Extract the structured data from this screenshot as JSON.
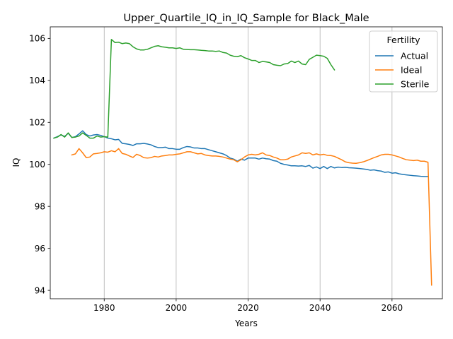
{
  "chart_data": {
    "type": "line",
    "title": "Upper_Quartile_IQ_in_IQ_Sample for Black_Male",
    "xlabel": "Years",
    "ylabel": "IQ",
    "xlim": [
      1965,
      2074
    ],
    "ylim": [
      93.6,
      106.55
    ],
    "xticks": [
      1980,
      2000,
      2020,
      2040,
      2060
    ],
    "yticks": [
      94,
      96,
      98,
      100,
      102,
      104,
      106
    ],
    "grid": "x-axis only",
    "legend": {
      "title": "Fertility",
      "placement": "top-right"
    },
    "series": [
      {
        "name": "Actual",
        "color": "#1f77b4",
        "x": [
          1966,
          1967,
          1968,
          1969,
          1970,
          1971,
          1972,
          1973,
          1974,
          1975,
          1976,
          1977,
          1978,
          1979,
          1980,
          1981,
          1982,
          1983,
          1984,
          1985,
          1986,
          1987,
          1988,
          1989,
          1990,
          1991,
          1992,
          1993,
          1994,
          1995,
          1996,
          1997,
          1998,
          1999,
          2000,
          2001,
          2002,
          2003,
          2004,
          2005,
          2006,
          2007,
          2008,
          2009,
          2010,
          2011,
          2012,
          2013,
          2014,
          2015,
          2016,
          2017,
          2018,
          2019,
          2020,
          2021,
          2022,
          2023,
          2024,
          2025,
          2026,
          2027,
          2028,
          2029,
          2030,
          2031,
          2032,
          2033,
          2034,
          2035,
          2036,
          2037,
          2038,
          2039,
          2040,
          2041,
          2042,
          2043,
          2044,
          2045,
          2046,
          2047,
          2048,
          2049,
          2050,
          2051,
          2052,
          2053,
          2054,
          2055,
          2056,
          2057,
          2058,
          2059,
          2060,
          2061,
          2062,
          2063,
          2064,
          2065,
          2066,
          2067,
          2068,
          2069,
          2070
        ],
        "values": [
          101.25,
          101.32,
          101.4,
          101.33,
          101.48,
          101.28,
          101.32,
          101.45,
          101.6,
          101.42,
          101.35,
          101.4,
          101.42,
          101.38,
          101.32,
          101.25,
          101.22,
          101.17,
          101.19,
          101.0,
          100.98,
          100.95,
          100.9,
          100.98,
          100.98,
          101.0,
          100.97,
          100.93,
          100.85,
          100.8,
          100.8,
          100.82,
          100.75,
          100.75,
          100.72,
          100.72,
          100.8,
          100.85,
          100.83,
          100.78,
          100.78,
          100.75,
          100.75,
          100.7,
          100.65,
          100.6,
          100.55,
          100.5,
          100.42,
          100.3,
          100.25,
          100.15,
          100.25,
          100.2,
          100.3,
          100.3,
          100.3,
          100.25,
          100.3,
          100.27,
          100.25,
          100.18,
          100.15,
          100.05,
          100.0,
          99.97,
          99.93,
          99.93,
          99.92,
          99.93,
          99.9,
          99.95,
          99.82,
          99.88,
          99.8,
          99.9,
          99.8,
          99.9,
          99.83,
          99.87,
          99.85,
          99.86,
          99.84,
          99.83,
          99.82,
          99.8,
          99.78,
          99.76,
          99.72,
          99.74,
          99.7,
          99.68,
          99.62,
          99.64,
          99.58,
          99.6,
          99.55,
          99.52,
          99.5,
          99.48,
          99.46,
          99.45,
          99.43,
          99.42,
          99.42
        ]
      },
      {
        "name": "Ideal",
        "color": "#ff7f0e",
        "x": [
          1971,
          1972,
          1973,
          1974,
          1975,
          1976,
          1977,
          1978,
          1979,
          1980,
          1981,
          1982,
          1983,
          1984,
          1985,
          1986,
          1987,
          1988,
          1989,
          1990,
          1991,
          1992,
          1993,
          1994,
          1995,
          1996,
          1997,
          1998,
          1999,
          2000,
          2001,
          2002,
          2003,
          2004,
          2005,
          2006,
          2007,
          2008,
          2009,
          2010,
          2011,
          2012,
          2013,
          2014,
          2015,
          2016,
          2017,
          2018,
          2019,
          2020,
          2021,
          2022,
          2023,
          2024,
          2025,
          2026,
          2027,
          2028,
          2029,
          2030,
          2031,
          2032,
          2033,
          2034,
          2035,
          2036,
          2037,
          2038,
          2039,
          2040,
          2041,
          2042,
          2043,
          2044,
          2045,
          2046,
          2047,
          2048,
          2049,
          2050,
          2051,
          2052,
          2053,
          2054,
          2055,
          2056,
          2057,
          2058,
          2059,
          2060,
          2061,
          2062,
          2063,
          2064,
          2065,
          2066,
          2067,
          2068,
          2069,
          2070,
          2071
        ],
        "values": [
          100.45,
          100.5,
          100.75,
          100.55,
          100.32,
          100.35,
          100.5,
          100.52,
          100.55,
          100.6,
          100.58,
          100.65,
          100.6,
          100.75,
          100.52,
          100.48,
          100.4,
          100.33,
          100.48,
          100.42,
          100.32,
          100.3,
          100.32,
          100.38,
          100.35,
          100.4,
          100.42,
          100.45,
          100.45,
          100.48,
          100.5,
          100.55,
          100.6,
          100.6,
          100.55,
          100.5,
          100.52,
          100.45,
          100.42,
          100.4,
          100.4,
          100.38,
          100.35,
          100.3,
          100.25,
          100.22,
          100.12,
          100.22,
          100.35,
          100.45,
          100.48,
          100.45,
          100.48,
          100.55,
          100.45,
          100.42,
          100.35,
          100.3,
          100.22,
          100.22,
          100.25,
          100.35,
          100.4,
          100.45,
          100.55,
          100.52,
          100.55,
          100.45,
          100.5,
          100.45,
          100.48,
          100.43,
          100.42,
          100.38,
          100.3,
          100.22,
          100.12,
          100.08,
          100.06,
          100.05,
          100.08,
          100.12,
          100.18,
          100.25,
          100.32,
          100.38,
          100.45,
          100.48,
          100.48,
          100.45,
          100.4,
          100.35,
          100.28,
          100.22,
          100.2,
          100.18,
          100.2,
          100.15,
          100.15,
          100.1,
          94.25
        ]
      },
      {
        "name": "Sterile",
        "color": "#2ca02c",
        "x": [
          1966,
          1967,
          1968,
          1969,
          1970,
          1971,
          1972,
          1973,
          1974,
          1975,
          1976,
          1977,
          1978,
          1979,
          1980,
          1981,
          1982,
          1983,
          1984,
          1985,
          1986,
          1987,
          1988,
          1989,
          1990,
          1991,
          1992,
          1993,
          1994,
          1995,
          1996,
          1997,
          1998,
          1999,
          2000,
          2001,
          2002,
          2003,
          2004,
          2005,
          2006,
          2007,
          2008,
          2009,
          2010,
          2011,
          2012,
          2013,
          2014,
          2015,
          2016,
          2017,
          2018,
          2019,
          2020,
          2021,
          2022,
          2023,
          2024,
          2025,
          2026,
          2027,
          2028,
          2029,
          2030,
          2031,
          2032,
          2033,
          2034,
          2035,
          2036,
          2037,
          2038,
          2039,
          2040,
          2041,
          2042,
          2043,
          2044
        ],
        "values": [
          101.25,
          101.3,
          101.42,
          101.3,
          101.5,
          101.28,
          101.3,
          101.35,
          101.5,
          101.38,
          101.25,
          101.25,
          101.35,
          101.3,
          101.32,
          101.3,
          105.95,
          105.8,
          105.82,
          105.75,
          105.78,
          105.75,
          105.6,
          105.5,
          105.45,
          105.45,
          105.48,
          105.55,
          105.62,
          105.65,
          105.6,
          105.58,
          105.55,
          105.55,
          105.52,
          105.55,
          105.48,
          105.47,
          105.46,
          105.46,
          105.45,
          105.43,
          105.42,
          105.4,
          105.4,
          105.38,
          105.4,
          105.33,
          105.3,
          105.2,
          105.15,
          105.13,
          105.18,
          105.08,
          105.02,
          104.95,
          104.95,
          104.85,
          104.9,
          104.88,
          104.85,
          104.75,
          104.72,
          104.7,
          104.78,
          104.8,
          104.92,
          104.85,
          104.92,
          104.78,
          104.75,
          105.0,
          105.1,
          105.2,
          105.18,
          105.15,
          105.05,
          104.75,
          104.5
        ]
      }
    ]
  }
}
